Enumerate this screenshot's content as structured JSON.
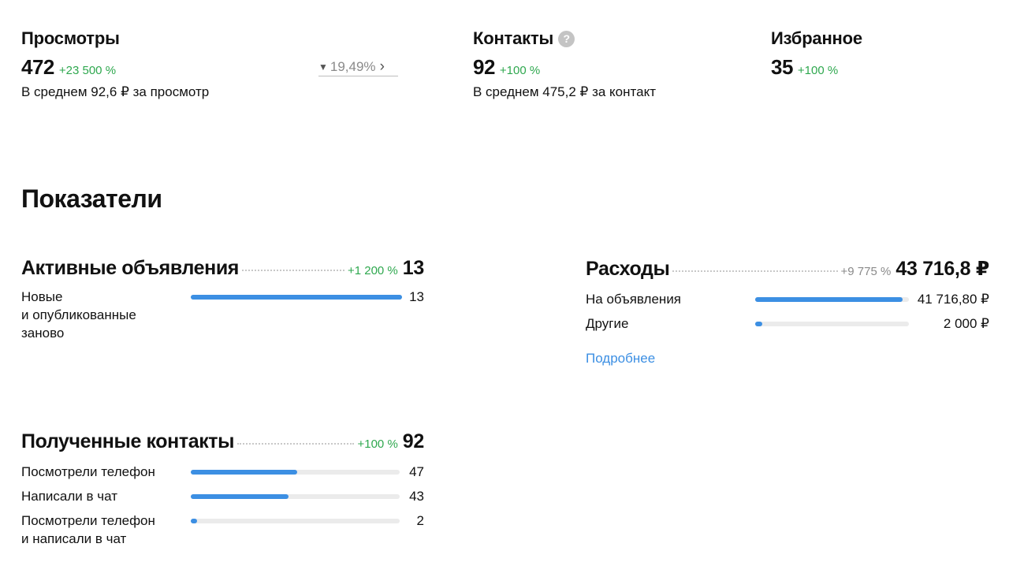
{
  "metrics": {
    "views": {
      "title": "Просмотры",
      "value": "472",
      "growth": "+23 500 %",
      "sub": "В среднем 92,6 ₽ за просмотр"
    },
    "conversion": {
      "value": "19,49%"
    },
    "contacts": {
      "title": "Контакты",
      "value": "92",
      "growth": "+100 %",
      "sub": "В среднем 475,2 ₽ за контакт",
      "help": "?"
    },
    "favorites": {
      "title": "Избранное",
      "value": "35",
      "growth": "+100 %"
    }
  },
  "section_title": "Показатели",
  "active_ads": {
    "title": "Активные объявления",
    "growth": "+1 200 %",
    "total": "13",
    "rows": [
      {
        "label_line1": "Новые",
        "label_line2": "и опубликованные",
        "label_line3": "заново",
        "value": "13",
        "fraction": 1.0
      }
    ]
  },
  "expenses": {
    "title": "Расходы",
    "growth": "+9 775 %",
    "total": "43 716,8 ₽",
    "rows": [
      {
        "label": "На объявления",
        "value": "41 716,80 ₽",
        "fraction": 0.96
      },
      {
        "label": "Другие",
        "value": "2 000 ₽",
        "fraction": 0.046
      }
    ],
    "more_link": "Подробнее"
  },
  "contacts_block": {
    "title": "Полученные контакты",
    "growth": "+100 %",
    "total": "92",
    "rows": [
      {
        "label": "Посмотрели телефон",
        "value": "47",
        "fraction": 0.511
      },
      {
        "label": "Написали в чат",
        "value": "43",
        "fraction": 0.467
      },
      {
        "label_line1": "Посмотрели телефон",
        "label_line2": "и написали в чат",
        "value": "2",
        "fraction": 0.022
      }
    ]
  },
  "colors": {
    "accent": "#3c8fe3",
    "growth": "#2fa84f",
    "track": "#ebebeb"
  },
  "icons": {
    "help": "question-circle-icon",
    "funnel": "funnel-icon",
    "chevron": "chevron-right-icon"
  }
}
